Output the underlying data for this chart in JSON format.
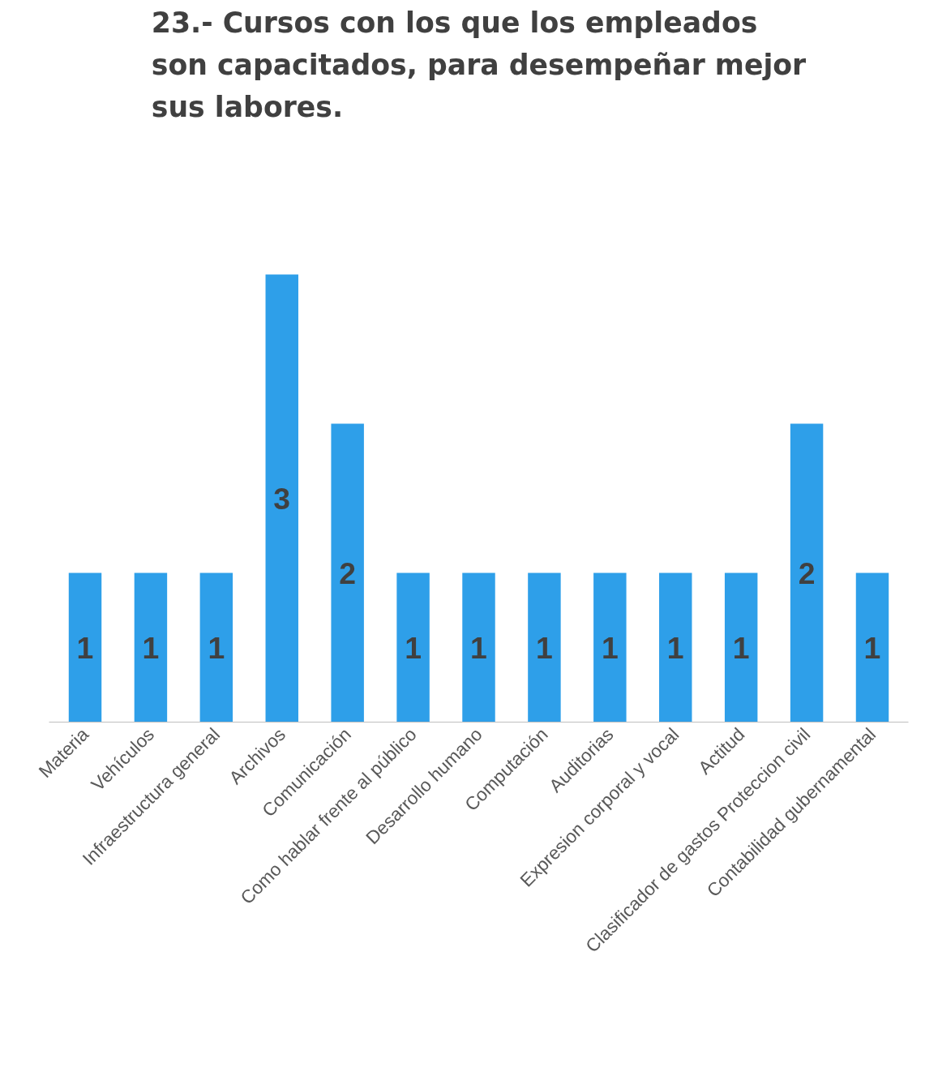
{
  "chart_data": {
    "type": "bar",
    "title": "23.- Cursos con los que los empleados son capacitados, para desempeñar mejor sus labores.",
    "categories": [
      "Materia",
      "Vehículos",
      "Infraestructura general",
      "Archivos",
      "Comunicación",
      "Como hablar frente al público",
      "Desarrollo humano",
      "Computación",
      "Auditorias",
      "Expresion corporal y vocal",
      "Actitud",
      "Clasificador de gastos Proteccion civil",
      "Contabilidad gubernamental"
    ],
    "values": [
      1,
      1,
      1,
      3,
      2,
      1,
      1,
      1,
      1,
      1,
      1,
      2,
      1
    ],
    "color": "#2e9fe9",
    "data_labels": true,
    "grid": false
  }
}
